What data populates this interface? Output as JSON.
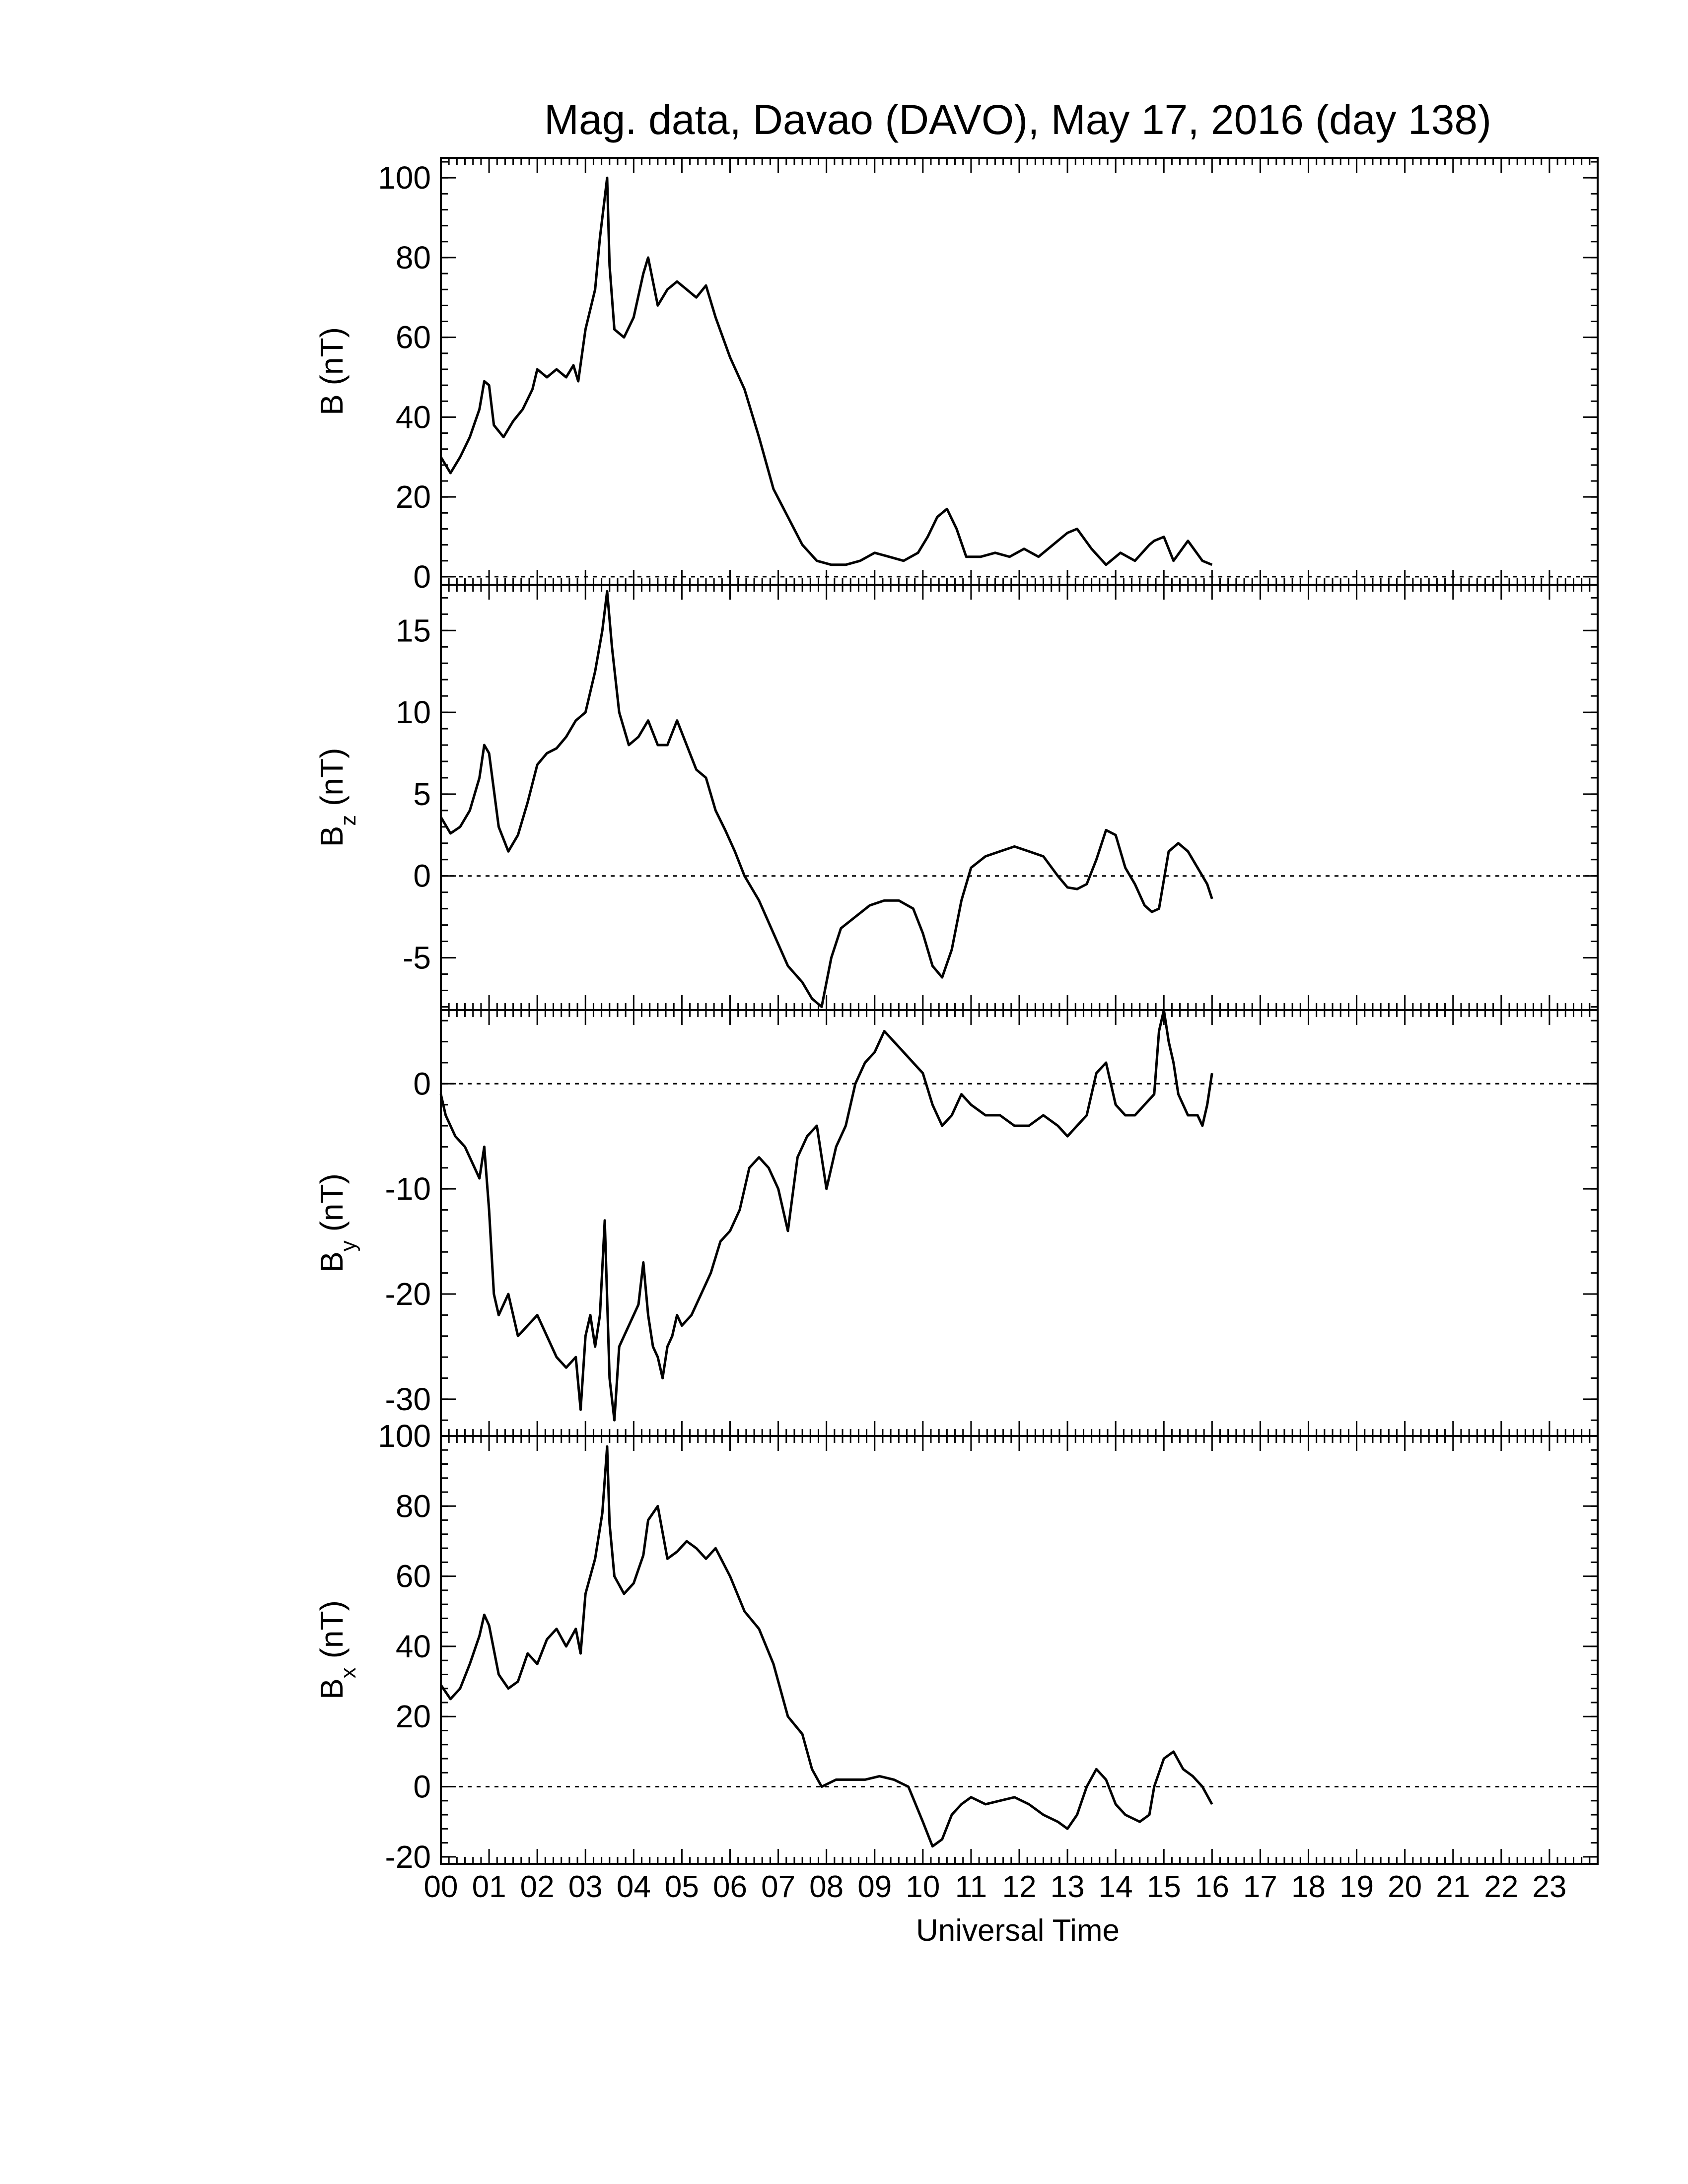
{
  "chart_data": {
    "type": "line",
    "title": "Mag. data, Davao (DAVO), May 17, 2016 (day 138)",
    "xlabel": "Universal Time",
    "xlim": [
      0,
      24
    ],
    "x_tick_labels": [
      "00",
      "01",
      "02",
      "03",
      "04",
      "05",
      "06",
      "07",
      "08",
      "09",
      "10",
      "11",
      "12",
      "13",
      "14",
      "15",
      "16",
      "17",
      "18",
      "19",
      "20",
      "21",
      "22",
      "23"
    ],
    "panels": [
      {
        "id": "B",
        "ylabel": "B (nT)",
        "ylim": [
          -2,
          105
        ],
        "yticks": [
          0,
          20,
          40,
          60,
          80,
          100
        ],
        "ytick_labels": [
          "0",
          "20",
          "40",
          "60",
          "80",
          "100"
        ],
        "zero_line": true,
        "series": [
          {
            "x": [
              0.0,
              0.2,
              0.4,
              0.6,
              0.8,
              0.9,
              1.0,
              1.1,
              1.3,
              1.5,
              1.7,
              1.9,
              2.0,
              2.2,
              2.4,
              2.6,
              2.75,
              2.85,
              3.0,
              3.2,
              3.3,
              3.45,
              3.5,
              3.6,
              3.8,
              4.0,
              4.2,
              4.3,
              4.5,
              4.7,
              4.9,
              5.1,
              5.3,
              5.5,
              5.7,
              6.0,
              6.3,
              6.6,
              6.9,
              7.2,
              7.5,
              7.8,
              8.1,
              8.4,
              8.7,
              9.0,
              9.3,
              9.6,
              9.9,
              10.1,
              10.3,
              10.5,
              10.7,
              10.9,
              11.2,
              11.5,
              11.8,
              12.1,
              12.4,
              12.7,
              13.0,
              13.2,
              13.5,
              13.8,
              14.1,
              14.4,
              14.7,
              14.8,
              15.0,
              15.2,
              15.5,
              15.8,
              16.0
            ],
            "y": [
              30,
              26,
              30,
              35,
              42,
              49,
              48,
              38,
              35,
              39,
              42,
              47,
              52,
              50,
              52,
              50,
              53,
              49,
              62,
              72,
              85,
              100,
              78,
              62,
              60,
              65,
              76,
              80,
              68,
              72,
              74,
              72,
              70,
              73,
              65,
              55,
              47,
              35,
              22,
              15,
              8,
              4,
              3,
              3,
              4,
              6,
              5,
              4,
              6,
              10,
              15,
              17,
              12,
              5,
              5,
              6,
              5,
              7,
              5,
              8,
              11,
              12,
              7,
              3,
              6,
              4,
              8,
              9,
              10,
              4,
              9,
              4,
              3
            ]
          }
        ]
      },
      {
        "id": "Bz",
        "ylabel": "B",
        "ylabel_sub": "z",
        "ylabel_unit": " (nT)",
        "ylim": [
          -8.2,
          17.8
        ],
        "yticks": [
          -5,
          0,
          5,
          10,
          15
        ],
        "ytick_labels": [
          "-5",
          "0",
          "5",
          "10",
          "15"
        ],
        "zero_line": true,
        "series": [
          {
            "x": [
              0.0,
              0.2,
              0.4,
              0.6,
              0.8,
              0.9,
              1.0,
              1.2,
              1.4,
              1.6,
              1.8,
              2.0,
              2.2,
              2.4,
              2.6,
              2.8,
              3.0,
              3.2,
              3.35,
              3.45,
              3.55,
              3.7,
              3.9,
              4.1,
              4.3,
              4.5,
              4.7,
              4.9,
              5.1,
              5.3,
              5.5,
              5.7,
              5.9,
              6.1,
              6.3,
              6.6,
              6.9,
              7.2,
              7.5,
              7.7,
              7.9,
              8.1,
              8.3,
              8.6,
              8.9,
              9.2,
              9.5,
              9.8,
              10.0,
              10.2,
              10.4,
              10.6,
              10.8,
              11.0,
              11.3,
              11.6,
              11.9,
              12.2,
              12.5,
              12.8,
              13.0,
              13.2,
              13.4,
              13.6,
              13.8,
              14.0,
              14.2,
              14.4,
              14.6,
              14.75,
              14.9,
              15.1,
              15.3,
              15.5,
              15.7,
              15.9,
              16.0
            ],
            "y": [
              3.6,
              2.6,
              3.0,
              4.0,
              6.0,
              8.0,
              7.5,
              3.0,
              1.5,
              2.5,
              4.5,
              6.8,
              7.5,
              7.8,
              8.5,
              9.5,
              10.0,
              12.5,
              15.0,
              17.4,
              14.0,
              10.0,
              8.0,
              8.5,
              9.5,
              8.0,
              8.0,
              9.5,
              8.0,
              6.5,
              6.0,
              4.0,
              2.8,
              1.5,
              0.0,
              -1.5,
              -3.5,
              -5.5,
              -6.5,
              -7.5,
              -8.0,
              -5.0,
              -3.2,
              -2.5,
              -1.8,
              -1.5,
              -1.5,
              -2.0,
              -3.5,
              -5.5,
              -6.2,
              -4.5,
              -1.5,
              0.5,
              1.2,
              1.5,
              1.8,
              1.5,
              1.2,
              0.0,
              -0.7,
              -0.8,
              -0.5,
              1.0,
              2.8,
              2.5,
              0.5,
              -0.5,
              -1.8,
              -2.2,
              -2.0,
              1.5,
              2.0,
              1.5,
              0.5,
              -0.5,
              -1.4
            ]
          }
        ]
      },
      {
        "id": "By",
        "ylabel": "B",
        "ylabel_sub": "y",
        "ylabel_unit": " (nT)",
        "ylim": [
          -33.5,
          7
        ],
        "yticks": [
          -30,
          -20,
          -10,
          0
        ],
        "ytick_labels": [
          "-30",
          "-20",
          "-10",
          "0"
        ],
        "zero_line": true,
        "series": [
          {
            "x": [
              0.0,
              0.1,
              0.3,
              0.5,
              0.7,
              0.8,
              0.9,
              1.0,
              1.1,
              1.2,
              1.4,
              1.6,
              1.8,
              2.0,
              2.2,
              2.4,
              2.6,
              2.8,
              2.9,
              3.0,
              3.1,
              3.2,
              3.3,
              3.4,
              3.5,
              3.6,
              3.7,
              3.8,
              3.9,
              4.0,
              4.1,
              4.2,
              4.3,
              4.4,
              4.5,
              4.6,
              4.7,
              4.8,
              4.9,
              5.0,
              5.2,
              5.4,
              5.6,
              5.8,
              6.0,
              6.2,
              6.4,
              6.6,
              6.8,
              7.0,
              7.2,
              7.4,
              7.6,
              7.8,
              8.0,
              8.2,
              8.4,
              8.6,
              8.8,
              9.0,
              9.2,
              9.4,
              9.6,
              9.8,
              10.0,
              10.2,
              10.4,
              10.6,
              10.8,
              11.0,
              11.3,
              11.6,
              11.9,
              12.2,
              12.5,
              12.8,
              13.0,
              13.2,
              13.4,
              13.6,
              13.8,
              14.0,
              14.2,
              14.4,
              14.6,
              14.8,
              14.9,
              15.0,
              15.1,
              15.2,
              15.3,
              15.5,
              15.7,
              15.8,
              15.9,
              16.0
            ],
            "y": [
              -1,
              -3,
              -5,
              -6,
              -8,
              -9,
              -6,
              -12,
              -20,
              -22,
              -20,
              -24,
              -23,
              -22,
              -24,
              -26,
              -27,
              -26,
              -31,
              -24,
              -22,
              -25,
              -22,
              -13,
              -28,
              -32,
              -25,
              -24,
              -23,
              -22,
              -21,
              -17,
              -22,
              -25,
              -26,
              -28,
              -25,
              -24,
              -22,
              -23,
              -22,
              -20,
              -18,
              -15,
              -14,
              -12,
              -8,
              -7,
              -8,
              -10,
              -14,
              -7,
              -5,
              -4,
              -10,
              -6,
              -4,
              0,
              2,
              3,
              5,
              4,
              3,
              2,
              1,
              -2,
              -4,
              -3,
              -1,
              -2,
              -3,
              -3,
              -4,
              -4,
              -3,
              -4,
              -5,
              -4,
              -3,
              1,
              2,
              -2,
              -3,
              -3,
              -2,
              -1,
              5,
              7,
              4,
              2,
              -1,
              -3,
              -3,
              -4,
              -2,
              1
            ]
          }
        ]
      },
      {
        "id": "Bx",
        "ylabel": "B",
        "ylabel_sub": "x",
        "ylabel_unit": " (nT)",
        "ylim": [
          -22,
          100
        ],
        "yticks": [
          -20,
          0,
          20,
          40,
          60,
          80,
          100
        ],
        "ytick_labels": [
          "-20",
          "0",
          "20",
          "40",
          "60",
          "80",
          "100"
        ],
        "zero_line": true,
        "series": [
          {
            "x": [
              0.0,
              0.2,
              0.4,
              0.6,
              0.8,
              0.9,
              1.0,
              1.2,
              1.4,
              1.6,
              1.8,
              2.0,
              2.2,
              2.4,
              2.6,
              2.8,
              2.9,
              3.0,
              3.2,
              3.35,
              3.45,
              3.5,
              3.6,
              3.8,
              4.0,
              4.2,
              4.3,
              4.5,
              4.7,
              4.9,
              5.1,
              5.3,
              5.5,
              5.7,
              6.0,
              6.3,
              6.6,
              6.9,
              7.2,
              7.5,
              7.7,
              7.9,
              8.2,
              8.5,
              8.8,
              9.1,
              9.4,
              9.7,
              10.0,
              10.2,
              10.4,
              10.6,
              10.8,
              11.0,
              11.3,
              11.6,
              11.9,
              12.2,
              12.5,
              12.8,
              13.0,
              13.2,
              13.4,
              13.6,
              13.8,
              14.0,
              14.2,
              14.5,
              14.7,
              14.8,
              15.0,
              15.2,
              15.4,
              15.6,
              15.8,
              16.0
            ],
            "y": [
              29,
              25,
              28,
              35,
              43,
              49,
              46,
              32,
              28,
              30,
              38,
              35,
              42,
              45,
              40,
              45,
              38,
              55,
              65,
              78,
              97,
              75,
              60,
              55,
              58,
              66,
              76,
              80,
              65,
              67,
              70,
              68,
              65,
              68,
              60,
              50,
              45,
              35,
              20,
              15,
              5,
              0,
              2,
              2,
              2,
              3,
              2,
              0,
              -10,
              -17,
              -15,
              -8,
              -5,
              -3,
              -5,
              -4,
              -3,
              -5,
              -8,
              -10,
              -12,
              -8,
              0,
              5,
              2,
              -5,
              -8,
              -10,
              -8,
              0,
              8,
              10,
              5,
              3,
              0,
              -5
            ]
          }
        ]
      }
    ]
  }
}
